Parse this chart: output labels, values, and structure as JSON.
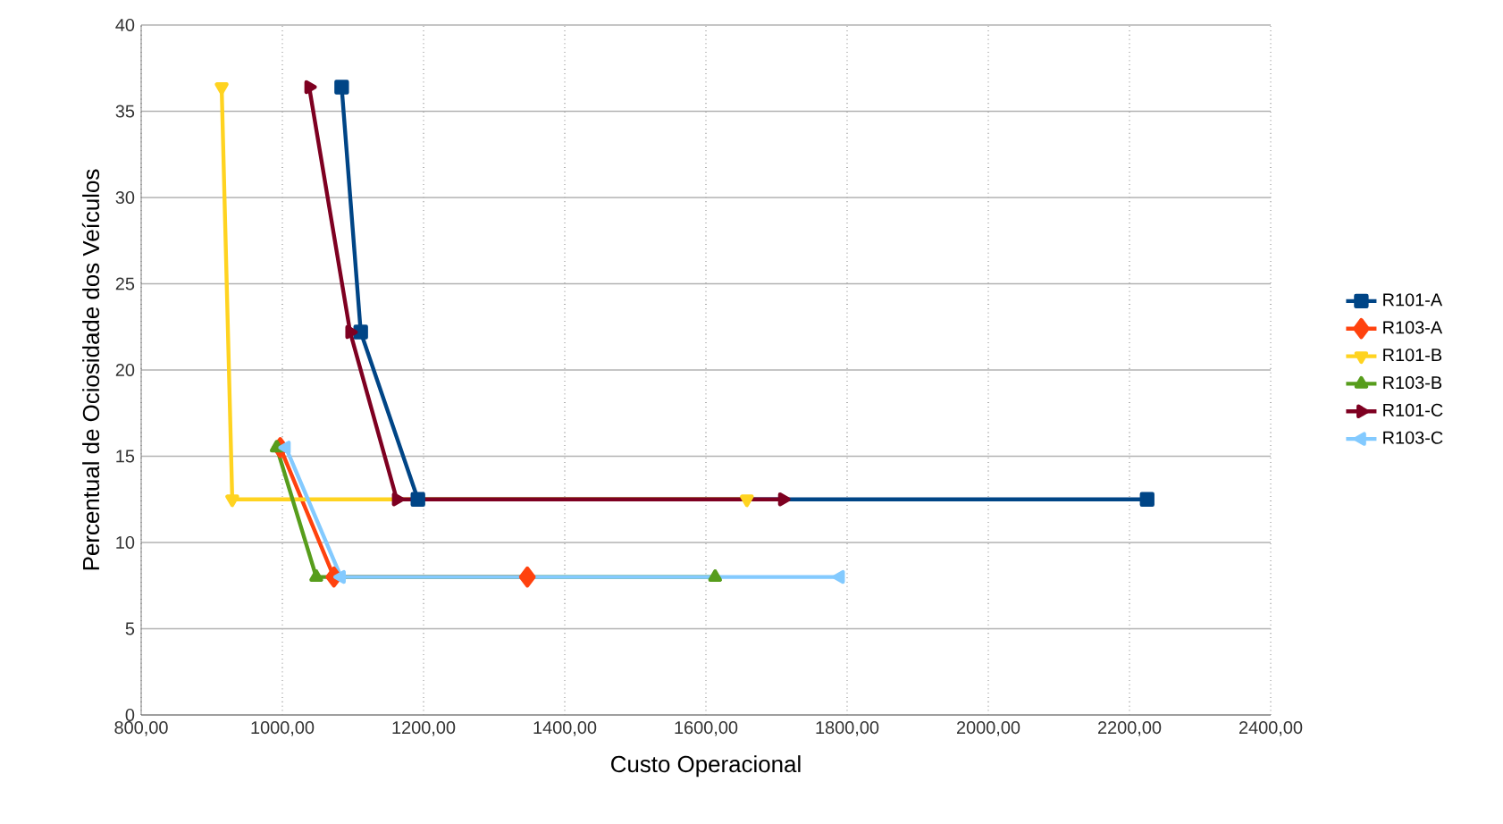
{
  "chart_data": {
    "type": "line",
    "xlabel": "Custo Operacional",
    "ylabel": "Percentual de Ociosidade dos Veículos",
    "xlim": [
      800,
      2400
    ],
    "ylim": [
      0,
      40
    ],
    "xticks": [
      {
        "value": 800,
        "label": "800,00"
      },
      {
        "value": 1000,
        "label": "1000,00"
      },
      {
        "value": 1200,
        "label": "1200,00"
      },
      {
        "value": 1400,
        "label": "1400,00"
      },
      {
        "value": 1600,
        "label": "1600,00"
      },
      {
        "value": 1800,
        "label": "1800,00"
      },
      {
        "value": 2000,
        "label": "2000,00"
      },
      {
        "value": 2200,
        "label": "2200,00"
      },
      {
        "value": 2400,
        "label": "2400,00"
      }
    ],
    "yticks": [
      0,
      5,
      10,
      15,
      20,
      25,
      30,
      35,
      40
    ],
    "grid": true,
    "legend": "right",
    "series": [
      {
        "name": "R101-A",
        "color": "#004586",
        "marker": "square",
        "x": [
          1084,
          1111,
          1192,
          2225
        ],
        "values": [
          36.4,
          22.2,
          12.5,
          12.5
        ]
      },
      {
        "name": "R103-A",
        "color": "#ff420e",
        "marker": "diamond",
        "x": [
          997,
          1073,
          1347
        ],
        "values": [
          15.5,
          8.0,
          8.0
        ]
      },
      {
        "name": "R101-B",
        "color": "#ffd320",
        "marker": "triangle",
        "x": [
          914,
          929,
          1658
        ],
        "values": [
          36.4,
          12.5,
          12.5
        ]
      },
      {
        "name": "R103-B",
        "color": "#579d1c",
        "marker": "triangle",
        "x": [
          992,
          1048,
          1613
        ],
        "values": [
          15.5,
          8.0,
          8.0
        ]
      },
      {
        "name": "R101-C",
        "color": "#7e0021",
        "marker": "triangle",
        "x": [
          1038,
          1096,
          1162,
          1709
        ],
        "values": [
          36.4,
          22.2,
          12.5,
          12.5
        ]
      },
      {
        "name": "R103-C",
        "color": "#83caff",
        "marker": "triangle",
        "x": [
          1005,
          1083,
          1790
        ],
        "values": [
          15.5,
          8.0,
          8.0
        ]
      }
    ]
  }
}
